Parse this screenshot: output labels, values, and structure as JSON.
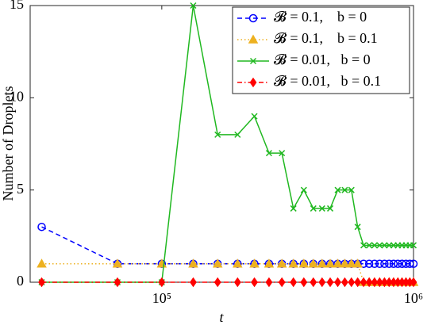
{
  "chart_data": {
    "type": "line",
    "xlabel": "t",
    "ylabel": "Number of Droplets",
    "xscale": "log",
    "xlim": [
      30000,
      1000000
    ],
    "ylim": [
      0,
      15
    ],
    "xticks": [
      {
        "value": 100000,
        "label": "10⁵"
      },
      {
        "value": 1000000,
        "label": "10⁶"
      }
    ],
    "yticks": [
      0,
      5,
      10,
      15
    ],
    "legend": "upper right",
    "x": [
      33333,
      66667,
      100000,
      133333,
      166667,
      200000,
      233333,
      266667,
      300000,
      333333,
      366667,
      400000,
      433333,
      466667,
      500000,
      533333,
      566667,
      600000,
      633333,
      666667,
      700000,
      733333,
      766667,
      800000,
      833333,
      866667,
      900000,
      933333,
      966667,
      1000000
    ],
    "series": [
      {
        "name": "𝓑 = 0.1,    b = 0",
        "color": "#0000ff",
        "dash": "6,4",
        "marker": "circle",
        "values": [
          3,
          1,
          1,
          1,
          1,
          1,
          1,
          1,
          1,
          1,
          1,
          1,
          1,
          1,
          1,
          1,
          1,
          1,
          1,
          1,
          1,
          1,
          1,
          1,
          1,
          1,
          1,
          1,
          1,
          1
        ]
      },
      {
        "name": "𝓑 = 0.1,    b = 0.1",
        "color": "#edb120",
        "dash": "1.5,3",
        "marker": "triangle",
        "values": [
          1,
          1,
          1,
          1,
          1,
          1,
          1,
          1,
          1,
          1,
          1,
          1,
          1,
          1,
          1,
          1,
          1,
          1,
          0,
          0,
          0,
          0,
          0,
          0,
          0,
          0,
          0,
          0,
          0,
          0
        ]
      },
      {
        "name": "𝓑 = 0.01,   b = 0",
        "color": "#20b820",
        "dash": "none",
        "marker": "x",
        "values": [
          0,
          0,
          0,
          15,
          8,
          8,
          9,
          7,
          7,
          4,
          5,
          4,
          4,
          4,
          5,
          5,
          5,
          3,
          2,
          2,
          2,
          2,
          2,
          2,
          2,
          2,
          2,
          2,
          2,
          2
        ]
      },
      {
        "name": "𝓑 = 0.01,   b = 0.1",
        "color": "#ff0000",
        "dash": "6,3,1.5,3",
        "marker": "diamond",
        "values": [
          0,
          0,
          0,
          0,
          0,
          0,
          0,
          0,
          0,
          0,
          0,
          0,
          0,
          0,
          0,
          0,
          0,
          0,
          0,
          0,
          0,
          0,
          0,
          0,
          0,
          0,
          0,
          0,
          0,
          0
        ]
      }
    ]
  }
}
